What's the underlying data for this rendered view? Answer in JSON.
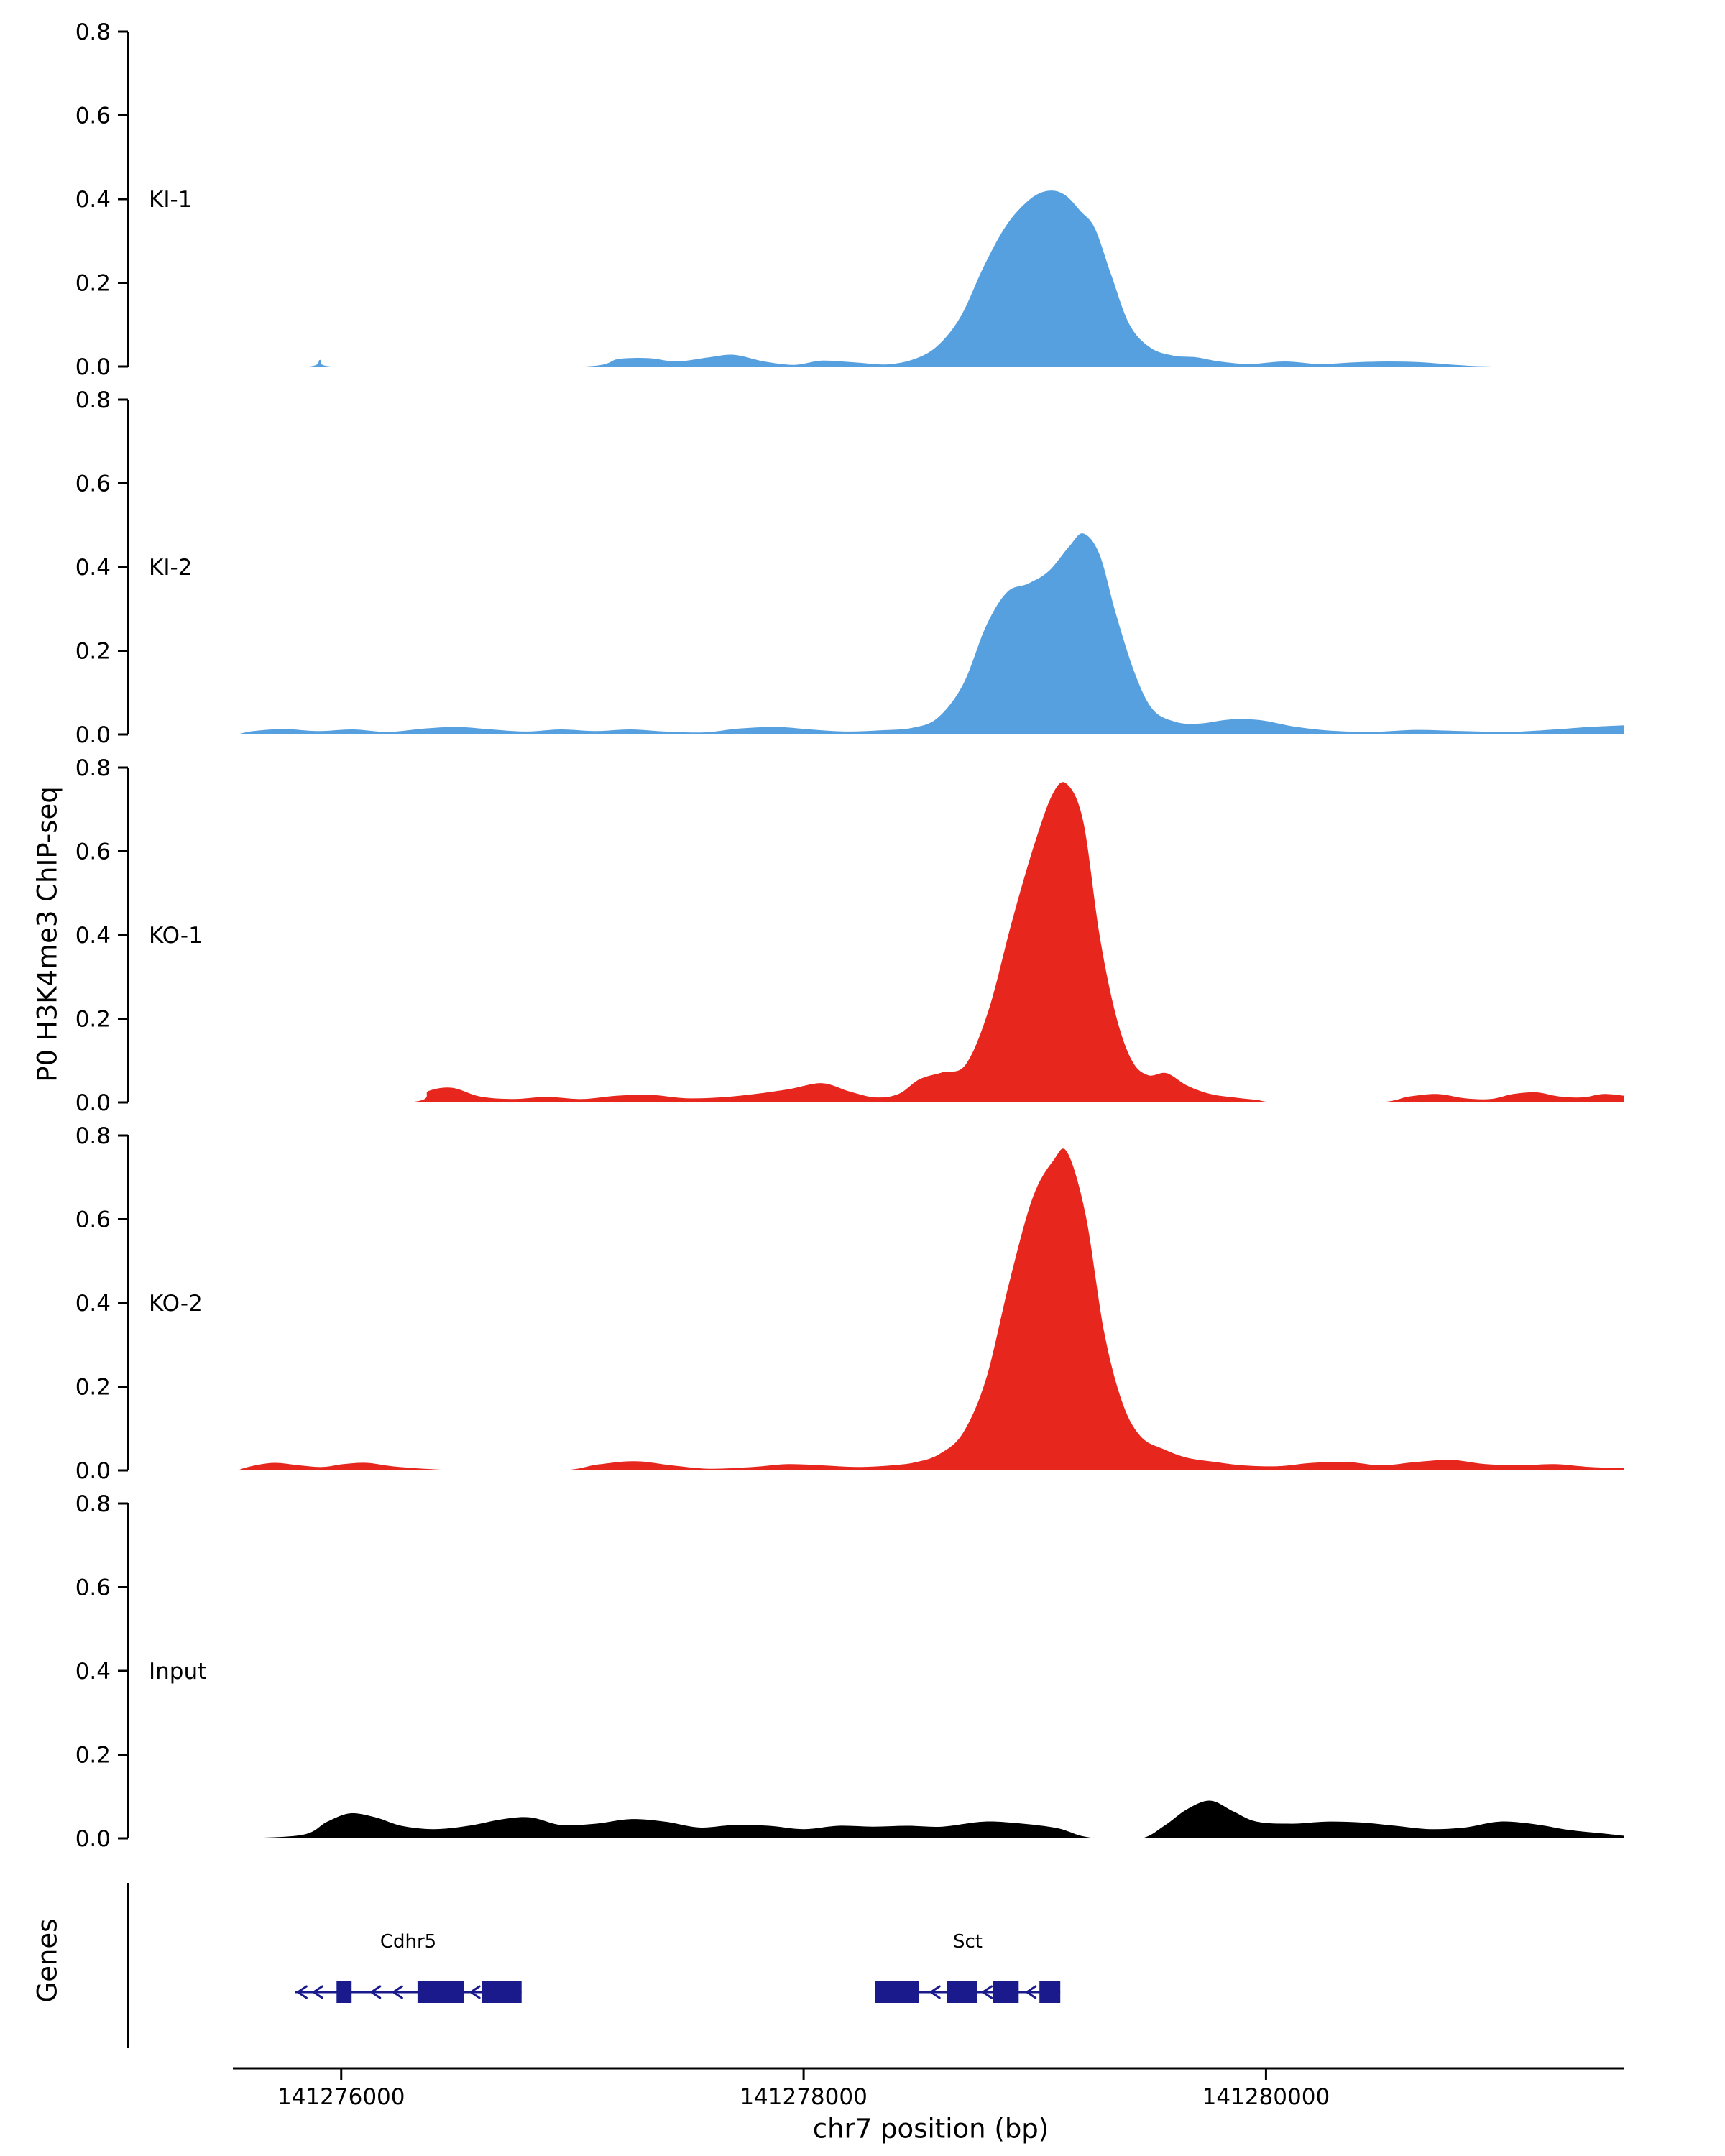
{
  "chart_data": {
    "type": "area",
    "title": "",
    "description": "Genome-browser style ChIP-seq coverage tracks with gene models",
    "x_axis": {
      "label": "chr7 position (bp)",
      "xlim": [
        141275550,
        141281550
      ],
      "ticks": [
        141276000,
        141278000,
        141280000
      ],
      "tick_labels": [
        "141276000",
        "141278000",
        "141280000"
      ]
    },
    "y_axis": {
      "label": "P0 H3K4me3 ChIP-seq",
      "ylim": [
        0,
        0.8
      ],
      "ticks": [
        0,
        0.2,
        0.4,
        0.6,
        0.8
      ],
      "tick_labels": [
        "0.0",
        "0.2",
        "0.4",
        "0.6",
        "0.8"
      ]
    },
    "tracks": [
      {
        "name": "KI-1",
        "color": "#57a0e0",
        "points": [
          [
            141275550,
            0
          ],
          [
            141275860,
            0
          ],
          [
            141275910,
            0.016
          ],
          [
            141275960,
            0
          ],
          [
            141276400,
            0
          ],
          [
            141277050,
            0
          ],
          [
            141277200,
            0.018
          ],
          [
            141277330,
            0.02
          ],
          [
            141277450,
            0.012
          ],
          [
            141277590,
            0.022
          ],
          [
            141277700,
            0.028
          ],
          [
            141277830,
            0.012
          ],
          [
            141277960,
            0.004
          ],
          [
            141278080,
            0.014
          ],
          [
            141278220,
            0.01
          ],
          [
            141278360,
            0.005
          ],
          [
            141278480,
            0.018
          ],
          [
            141278580,
            0.05
          ],
          [
            141278680,
            0.12
          ],
          [
            141278780,
            0.24
          ],
          [
            141278880,
            0.34
          ],
          [
            141278980,
            0.4
          ],
          [
            141279060,
            0.42
          ],
          [
            141279130,
            0.41
          ],
          [
            141279200,
            0.37
          ],
          [
            141279260,
            0.33
          ],
          [
            141279330,
            0.22
          ],
          [
            141279410,
            0.1
          ],
          [
            141279500,
            0.045
          ],
          [
            141279600,
            0.026
          ],
          [
            141279700,
            0.022
          ],
          [
            141279800,
            0.012
          ],
          [
            141279930,
            0.006
          ],
          [
            141280080,
            0.012
          ],
          [
            141280230,
            0.006
          ],
          [
            141280380,
            0.01
          ],
          [
            141280530,
            0.012
          ],
          [
            141280680,
            0.01
          ],
          [
            141280820,
            0.004
          ],
          [
            141281000,
            0
          ],
          [
            141281550,
            0
          ]
        ]
      },
      {
        "name": "KI-2",
        "color": "#57a0e0",
        "points": [
          [
            141275550,
            0
          ],
          [
            141275620,
            0.008
          ],
          [
            141275750,
            0.013
          ],
          [
            141275900,
            0.008
          ],
          [
            141276050,
            0.012
          ],
          [
            141276200,
            0.006
          ],
          [
            141276360,
            0.014
          ],
          [
            141276500,
            0.018
          ],
          [
            141276650,
            0.012
          ],
          [
            141276800,
            0.007
          ],
          [
            141276950,
            0.012
          ],
          [
            141277100,
            0.008
          ],
          [
            141277250,
            0.012
          ],
          [
            141277400,
            0.007
          ],
          [
            141277570,
            0.005
          ],
          [
            141277720,
            0.014
          ],
          [
            141277880,
            0.018
          ],
          [
            141278030,
            0.012
          ],
          [
            141278180,
            0.007
          ],
          [
            141278330,
            0.01
          ],
          [
            141278470,
            0.016
          ],
          [
            141278580,
            0.04
          ],
          [
            141278690,
            0.12
          ],
          [
            141278790,
            0.26
          ],
          [
            141278880,
            0.34
          ],
          [
            141278970,
            0.36
          ],
          [
            141279060,
            0.39
          ],
          [
            141279150,
            0.45
          ],
          [
            141279210,
            0.48
          ],
          [
            141279280,
            0.43
          ],
          [
            141279350,
            0.29
          ],
          [
            141279430,
            0.15
          ],
          [
            141279510,
            0.06
          ],
          [
            141279610,
            0.03
          ],
          [
            141279710,
            0.026
          ],
          [
            141279850,
            0.036
          ],
          [
            141279980,
            0.034
          ],
          [
            141280110,
            0.02
          ],
          [
            141280260,
            0.01
          ],
          [
            141280450,
            0.006
          ],
          [
            141280650,
            0.011
          ],
          [
            141280850,
            0.008
          ],
          [
            141281050,
            0.006
          ],
          [
            141281250,
            0.012
          ],
          [
            141281400,
            0.018
          ],
          [
            141281550,
            0.022
          ]
        ]
      },
      {
        "name": "KO-1",
        "color": "#e7261d",
        "points": [
          [
            141275550,
            0
          ],
          [
            141276280,
            0
          ],
          [
            141276380,
            0.028
          ],
          [
            141276480,
            0.035
          ],
          [
            141276600,
            0.014
          ],
          [
            141276740,
            0.008
          ],
          [
            141276890,
            0.013
          ],
          [
            141277040,
            0.008
          ],
          [
            141277190,
            0.016
          ],
          [
            141277340,
            0.018
          ],
          [
            141277490,
            0.01
          ],
          [
            141277640,
            0.012
          ],
          [
            141277790,
            0.02
          ],
          [
            141277940,
            0.032
          ],
          [
            141278080,
            0.046
          ],
          [
            141278200,
            0.026
          ],
          [
            141278310,
            0.012
          ],
          [
            141278410,
            0.02
          ],
          [
            141278500,
            0.055
          ],
          [
            141278600,
            0.072
          ],
          [
            141278700,
            0.09
          ],
          [
            141278800,
            0.22
          ],
          [
            141278900,
            0.43
          ],
          [
            141279000,
            0.62
          ],
          [
            141279080,
            0.74
          ],
          [
            141279140,
            0.76
          ],
          [
            141279210,
            0.67
          ],
          [
            141279280,
            0.4
          ],
          [
            141279350,
            0.21
          ],
          [
            141279420,
            0.1
          ],
          [
            141279490,
            0.065
          ],
          [
            141279570,
            0.07
          ],
          [
            141279660,
            0.04
          ],
          [
            141279760,
            0.02
          ],
          [
            141279860,
            0.012
          ],
          [
            141279960,
            0.006
          ],
          [
            141280060,
            0
          ],
          [
            141280480,
            0
          ],
          [
            141280620,
            0.014
          ],
          [
            141280740,
            0.02
          ],
          [
            141280860,
            0.01
          ],
          [
            141280970,
            0.008
          ],
          [
            141281070,
            0.02
          ],
          [
            141281170,
            0.024
          ],
          [
            141281270,
            0.014
          ],
          [
            141281370,
            0.012
          ],
          [
            141281460,
            0.02
          ],
          [
            141281550,
            0.016
          ]
        ]
      },
      {
        "name": "KO-2",
        "color": "#e7261d",
        "points": [
          [
            141275550,
            0
          ],
          [
            141275610,
            0.01
          ],
          [
            141275710,
            0.018
          ],
          [
            141275820,
            0.012
          ],
          [
            141275920,
            0.008
          ],
          [
            141276010,
            0.015
          ],
          [
            141276110,
            0.018
          ],
          [
            141276220,
            0.01
          ],
          [
            141276360,
            0.004
          ],
          [
            141276550,
            0
          ],
          [
            141276950,
            0
          ],
          [
            141277110,
            0.014
          ],
          [
            141277270,
            0.022
          ],
          [
            141277430,
            0.012
          ],
          [
            141277590,
            0.004
          ],
          [
            141277780,
            0.008
          ],
          [
            141277930,
            0.015
          ],
          [
            141278080,
            0.012
          ],
          [
            141278230,
            0.008
          ],
          [
            141278380,
            0.012
          ],
          [
            141278490,
            0.02
          ],
          [
            141278590,
            0.04
          ],
          [
            141278690,
            0.09
          ],
          [
            141278790,
            0.22
          ],
          [
            141278890,
            0.45
          ],
          [
            141278990,
            0.65
          ],
          [
            141279080,
            0.74
          ],
          [
            141279140,
            0.76
          ],
          [
            141279220,
            0.61
          ],
          [
            141279300,
            0.33
          ],
          [
            141279380,
            0.16
          ],
          [
            141279460,
            0.08
          ],
          [
            141279560,
            0.05
          ],
          [
            141279660,
            0.03
          ],
          [
            141279780,
            0.02
          ],
          [
            141279900,
            0.012
          ],
          [
            141280050,
            0.01
          ],
          [
            141280200,
            0.018
          ],
          [
            141280350,
            0.02
          ],
          [
            141280500,
            0.012
          ],
          [
            141280650,
            0.02
          ],
          [
            141280800,
            0.025
          ],
          [
            141280950,
            0.015
          ],
          [
            141281100,
            0.012
          ],
          [
            141281250,
            0.015
          ],
          [
            141281400,
            0.008
          ],
          [
            141281550,
            0.005
          ]
        ]
      },
      {
        "name": "Input",
        "color": "#000000",
        "points": [
          [
            141275550,
            0
          ],
          [
            141275830,
            0.008
          ],
          [
            141275940,
            0.04
          ],
          [
            141276040,
            0.06
          ],
          [
            141276150,
            0.05
          ],
          [
            141276260,
            0.03
          ],
          [
            141276400,
            0.022
          ],
          [
            141276550,
            0.03
          ],
          [
            141276700,
            0.046
          ],
          [
            141276820,
            0.05
          ],
          [
            141276950,
            0.032
          ],
          [
            141277100,
            0.035
          ],
          [
            141277250,
            0.046
          ],
          [
            141277400,
            0.04
          ],
          [
            141277550,
            0.026
          ],
          [
            141277700,
            0.032
          ],
          [
            141277850,
            0.03
          ],
          [
            141278000,
            0.022
          ],
          [
            141278150,
            0.03
          ],
          [
            141278300,
            0.028
          ],
          [
            141278450,
            0.03
          ],
          [
            141278600,
            0.028
          ],
          [
            141278780,
            0.04
          ],
          [
            141278950,
            0.035
          ],
          [
            141279100,
            0.024
          ],
          [
            141279200,
            0.006
          ],
          [
            141279290,
            0
          ],
          [
            141279460,
            0
          ],
          [
            141279560,
            0.03
          ],
          [
            141279660,
            0.07
          ],
          [
            141279760,
            0.09
          ],
          [
            141279860,
            0.064
          ],
          [
            141279960,
            0.04
          ],
          [
            141280110,
            0.035
          ],
          [
            141280260,
            0.04
          ],
          [
            141280410,
            0.038
          ],
          [
            141280560,
            0.03
          ],
          [
            141280710,
            0.022
          ],
          [
            141280860,
            0.026
          ],
          [
            141281010,
            0.04
          ],
          [
            141281160,
            0.034
          ],
          [
            141281310,
            0.02
          ],
          [
            141281450,
            0.012
          ],
          [
            141281550,
            0.006
          ]
        ]
      }
    ],
    "genes_panel": {
      "label": "Genes",
      "gene_color": "#1a1a8c",
      "genes": [
        {
          "name": "Cdhr5",
          "strand": "-",
          "start": 141275800,
          "end": 141276780,
          "exons": [
            [
              141275980,
              141276045
            ],
            [
              141276330,
              141276530
            ],
            [
              141276610,
              141276780
            ]
          ]
        },
        {
          "name": "Sct",
          "strand": "-",
          "start": 141278310,
          "end": 141279110,
          "exons": [
            [
              141278310,
              141278500
            ],
            [
              141278620,
              141278750
            ],
            [
              141278820,
              141278930
            ],
            [
              141279020,
              141279110
            ]
          ]
        }
      ]
    }
  }
}
